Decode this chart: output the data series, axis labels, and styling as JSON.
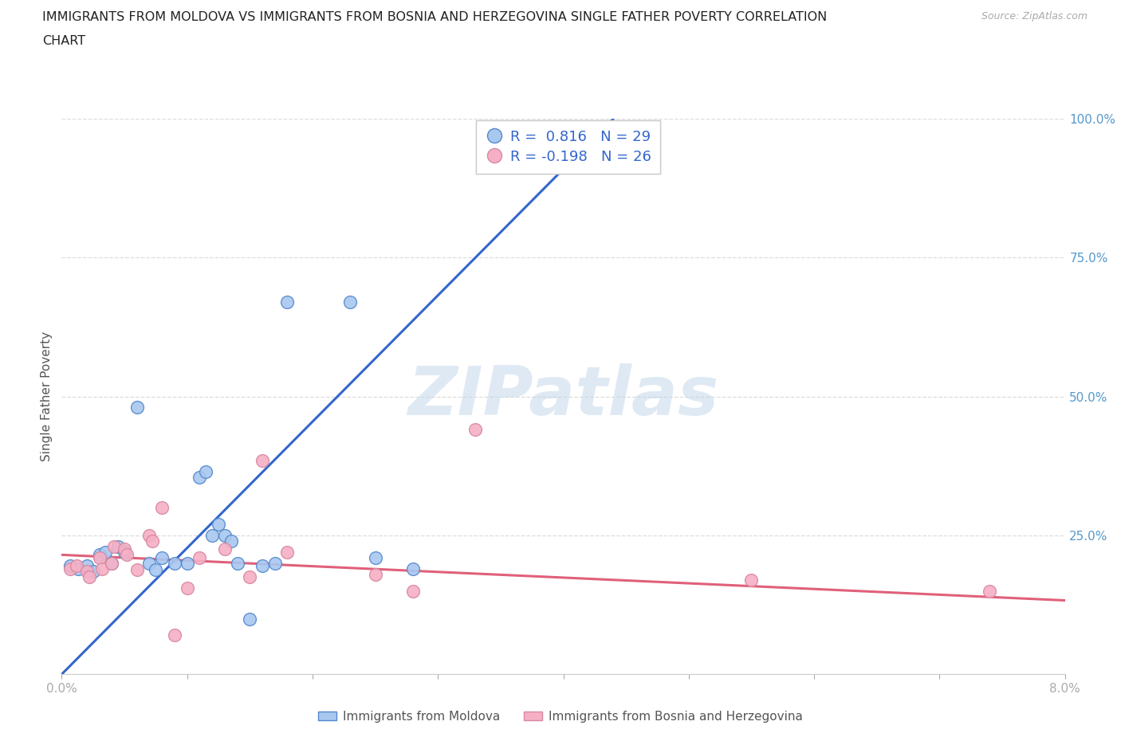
{
  "title_line1": "IMMIGRANTS FROM MOLDOVA VS IMMIGRANTS FROM BOSNIA AND HERZEGOVINA SINGLE FATHER POVERTY CORRELATION",
  "title_line2": "CHART",
  "source": "Source: ZipAtlas.com",
  "ylabel": "Single Father Poverty",
  "xlim": [
    0.0,
    0.08
  ],
  "ylim": [
    0.0,
    1.0
  ],
  "xticks": [
    0.0,
    0.01,
    0.02,
    0.03,
    0.04,
    0.05,
    0.06,
    0.07,
    0.08
  ],
  "xticklabels": [
    "0.0%",
    "",
    "",
    "",
    "",
    "",
    "",
    "",
    "8.0%"
  ],
  "yticks": [
    0.0,
    0.25,
    0.5,
    0.75,
    1.0
  ],
  "yticklabels_right": [
    "",
    "25.0%",
    "50.0%",
    "75.0%",
    "100.0%"
  ],
  "moldova_color": "#a8c8f0",
  "moldova_edge_color": "#5588cc",
  "bosnia_color": "#f5b0c5",
  "bosnia_edge_color": "#d888a0",
  "moldova_R": 0.816,
  "moldova_N": 29,
  "bosnia_R": -0.198,
  "bosnia_N": 26,
  "watermark_text": "ZIPatlas",
  "legend_moldova": "Immigrants from Moldova",
  "legend_bosnia": "Immigrants from Bosnia and Herzegovina",
  "moldova_points": [
    [
      0.0007,
      0.195
    ],
    [
      0.0013,
      0.19
    ],
    [
      0.002,
      0.195
    ],
    [
      0.0025,
      0.185
    ],
    [
      0.003,
      0.215
    ],
    [
      0.0035,
      0.22
    ],
    [
      0.004,
      0.2
    ],
    [
      0.0045,
      0.23
    ],
    [
      0.005,
      0.22
    ],
    [
      0.006,
      0.48
    ],
    [
      0.007,
      0.2
    ],
    [
      0.0075,
      0.188
    ],
    [
      0.008,
      0.21
    ],
    [
      0.009,
      0.2
    ],
    [
      0.01,
      0.2
    ],
    [
      0.011,
      0.355
    ],
    [
      0.0115,
      0.365
    ],
    [
      0.012,
      0.25
    ],
    [
      0.0125,
      0.27
    ],
    [
      0.013,
      0.25
    ],
    [
      0.0135,
      0.24
    ],
    [
      0.014,
      0.2
    ],
    [
      0.015,
      0.1
    ],
    [
      0.016,
      0.195
    ],
    [
      0.017,
      0.2
    ],
    [
      0.018,
      0.67
    ],
    [
      0.023,
      0.67
    ],
    [
      0.025,
      0.21
    ],
    [
      0.028,
      0.19
    ]
  ],
  "bosnia_points": [
    [
      0.0007,
      0.19
    ],
    [
      0.0012,
      0.195
    ],
    [
      0.002,
      0.185
    ],
    [
      0.0022,
      0.175
    ],
    [
      0.003,
      0.21
    ],
    [
      0.0032,
      0.19
    ],
    [
      0.004,
      0.2
    ],
    [
      0.0042,
      0.23
    ],
    [
      0.005,
      0.225
    ],
    [
      0.0052,
      0.215
    ],
    [
      0.006,
      0.188
    ],
    [
      0.007,
      0.25
    ],
    [
      0.0072,
      0.24
    ],
    [
      0.008,
      0.3
    ],
    [
      0.009,
      0.07
    ],
    [
      0.01,
      0.155
    ],
    [
      0.011,
      0.21
    ],
    [
      0.013,
      0.225
    ],
    [
      0.015,
      0.175
    ],
    [
      0.016,
      0.385
    ],
    [
      0.018,
      0.22
    ],
    [
      0.025,
      0.18
    ],
    [
      0.028,
      0.15
    ],
    [
      0.033,
      0.44
    ],
    [
      0.055,
      0.17
    ],
    [
      0.074,
      0.15
    ]
  ],
  "moldova_line_color": "#3366cc",
  "bosnia_line_color": "#e0607a",
  "moldova_line": [
    [
      0.0,
      0.0
    ],
    [
      0.044,
      1.0
    ]
  ],
  "bosnia_line": [
    [
      0.0,
      0.215
    ],
    [
      0.08,
      0.133
    ]
  ],
  "background_color": "#ffffff",
  "grid_color": "#dddddd",
  "title_color": "#222222",
  "axis_label_color": "#555555",
  "right_axis_color": "#5599cc",
  "marker_size": 130
}
